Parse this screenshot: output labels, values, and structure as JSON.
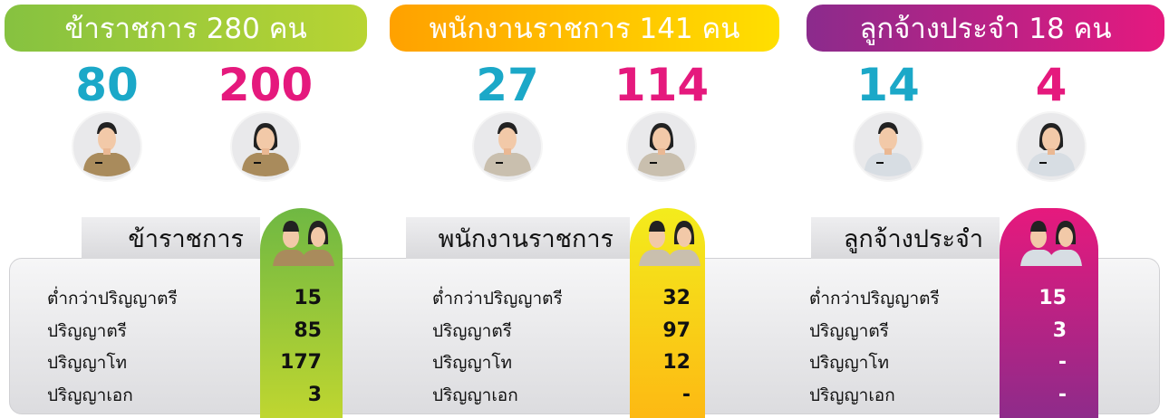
{
  "groups": [
    {
      "title": "ข้าราชการ 280 คน",
      "male": 80,
      "female": 200,
      "tab": "ข้าราชการ",
      "rows": [
        {
          "label": "ต่ำกว่าปริญญาตรี",
          "value": 15
        },
        {
          "label": "ปริญญาตรี",
          "value": 85
        },
        {
          "label": "ปริญญาโท",
          "value": 177
        },
        {
          "label": "ปริญญาเอก",
          "value": 3
        }
      ]
    },
    {
      "title": "พนักงานราชการ 141 คน",
      "male": 27,
      "female": 114,
      "tab": "พนักงานราชการ",
      "rows": [
        {
          "label": "ต่ำกว่าปริญญาตรี",
          "value": 32
        },
        {
          "label": "ปริญญาตรี",
          "value": 97
        },
        {
          "label": "ปริญญาโท",
          "value": 12
        },
        {
          "label": "ปริญญาเอก",
          "value": "-"
        }
      ]
    },
    {
      "title": "ลูกจ้างประจำ 18 คน",
      "male": 14,
      "female": 4,
      "tab": "ลูกจ้างประจำ",
      "rows": [
        {
          "label": "ต่ำกว่าปริญญาตรี",
          "value": 15
        },
        {
          "label": "ปริญญาตรี",
          "value": 3
        },
        {
          "label": "ปริญญาโท",
          "value": "-"
        },
        {
          "label": "ปริญญาเอก",
          "value": "-"
        }
      ]
    }
  ]
}
